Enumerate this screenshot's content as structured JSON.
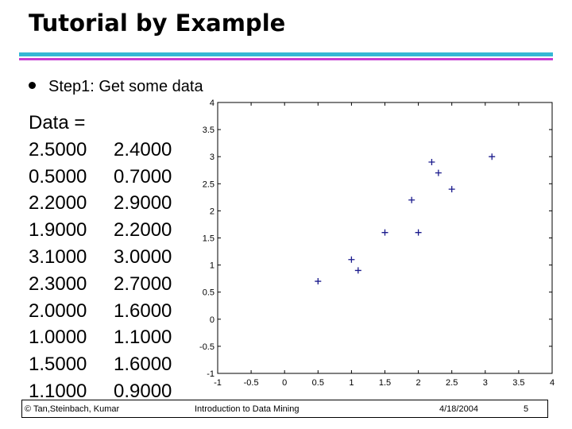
{
  "slide": {
    "title": "Tutorial by Example",
    "bullet": "Step1: Get some data",
    "data_label": "Data =",
    "data_rows": [
      [
        "2.5000",
        "2.4000"
      ],
      [
        "0.5000",
        "0.7000"
      ],
      [
        "2.2000",
        "2.9000"
      ],
      [
        "1.9000",
        "2.2000"
      ],
      [
        "3.1000",
        "3.0000"
      ],
      [
        "2.3000",
        "2.7000"
      ],
      [
        "2.0000",
        "1.6000"
      ],
      [
        "1.0000",
        "1.1000"
      ],
      [
        "1.5000",
        "1.6000"
      ],
      [
        "1.1000",
        "0.9000"
      ]
    ],
    "colors": {
      "accent_bar": "#35b8d4",
      "accent_line": "#c63ed2",
      "marker": "#1a1a8c"
    }
  },
  "footer": {
    "copyright": "© Tan,Steinbach, Kumar",
    "course": "Introduction to Data Mining",
    "date": "4/18/2004",
    "page": "5"
  },
  "chart_data": {
    "type": "scatter",
    "marker": "+",
    "x": [
      2.5,
      0.5,
      2.2,
      1.9,
      3.1,
      2.3,
      2.0,
      1.0,
      1.5,
      1.1
    ],
    "y": [
      2.4,
      0.7,
      2.9,
      2.2,
      3.0,
      2.7,
      1.6,
      1.1,
      1.6,
      0.9
    ],
    "xlim": [
      -1,
      4
    ],
    "ylim": [
      -1,
      4
    ],
    "xticks": [
      "-1",
      "-0.5",
      "0",
      "0.5",
      "1",
      "1.5",
      "2",
      "2.5",
      "3",
      "3.5",
      "4"
    ],
    "yticks": [
      "-1",
      "-0.5",
      "0",
      "0.5",
      "1",
      "1.5",
      "2",
      "2.5",
      "3",
      "3.5",
      "4"
    ],
    "grid": false,
    "legend": "none"
  }
}
